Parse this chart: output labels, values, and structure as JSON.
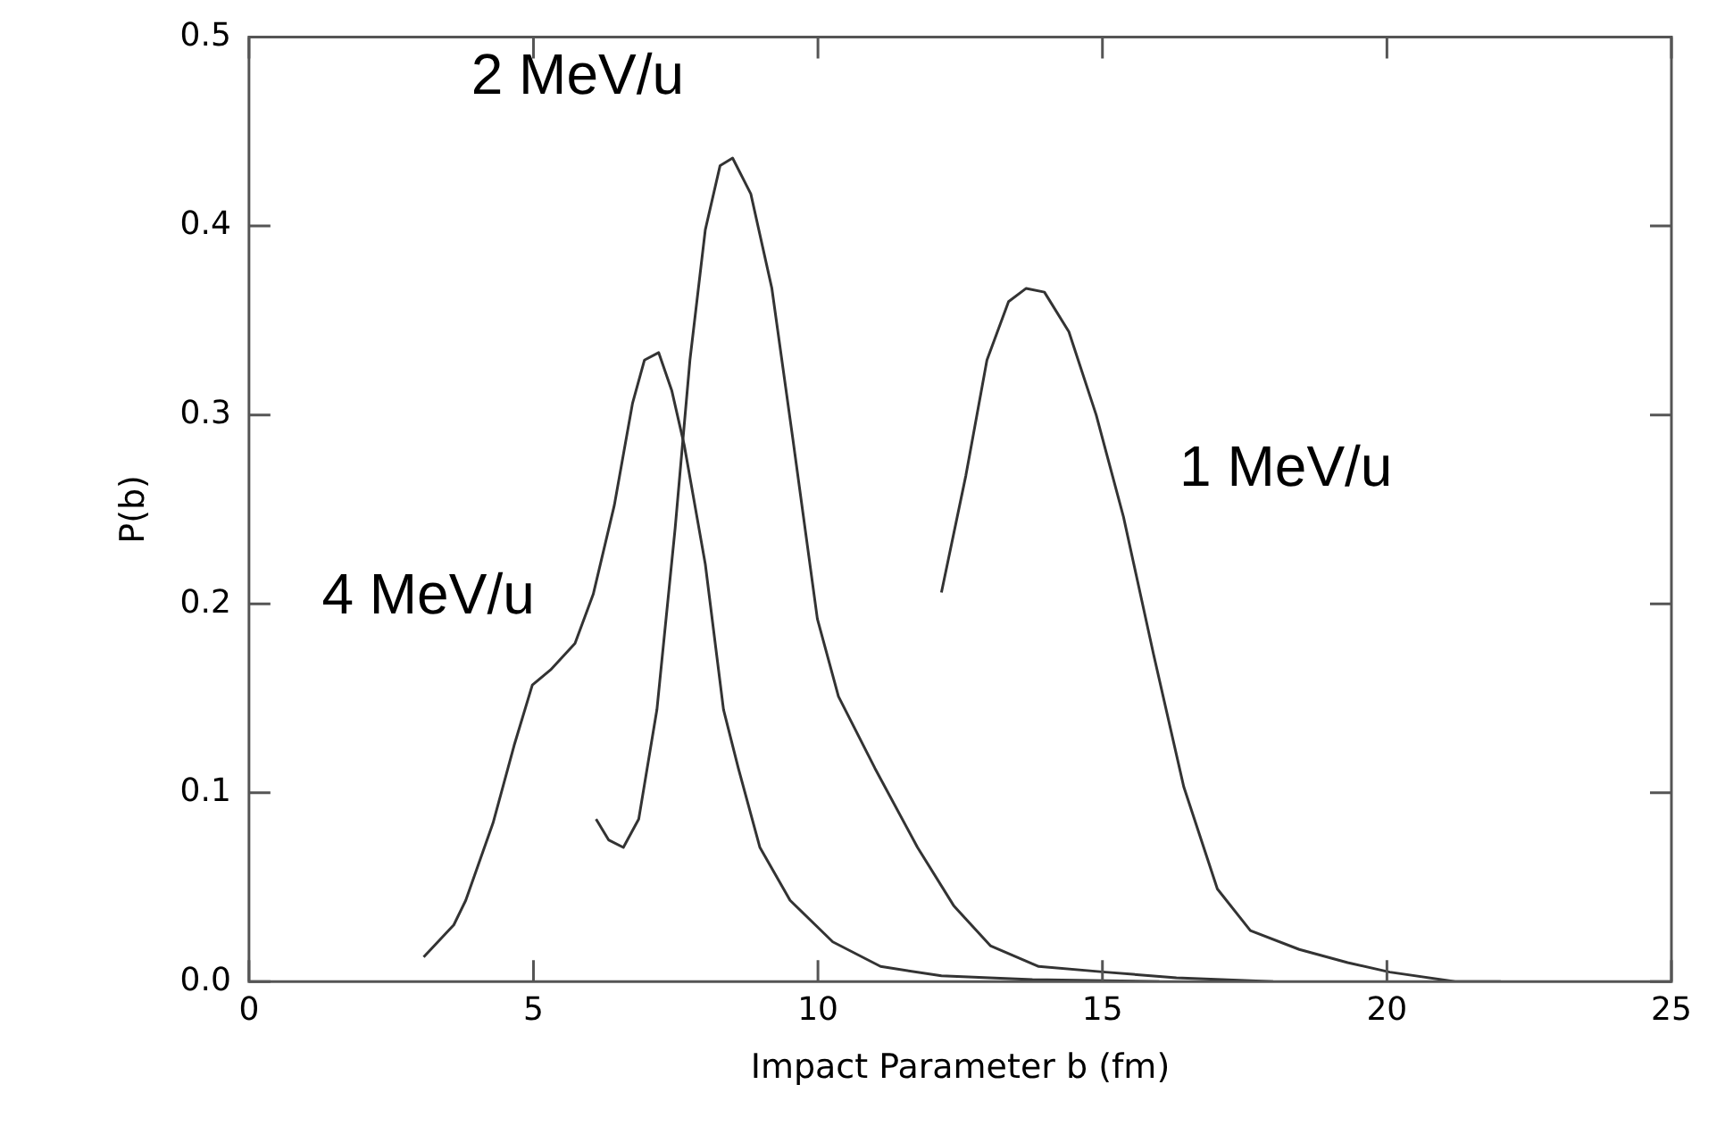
{
  "chart_data": {
    "type": "line",
    "xlabel": "Impact Parameter b (fm)",
    "ylabel": "P(b)",
    "xlim": [
      0,
      25
    ],
    "xticks": [
      0,
      5,
      10,
      15,
      20,
      25
    ],
    "ylim": [
      0,
      0.5
    ],
    "yticks": [
      {
        "value": 0,
        "label": "0.0"
      },
      0.1,
      0.2,
      0.3,
      0.4,
      0.5
    ],
    "grid": false,
    "legend": false,
    "marker": "none",
    "line_style": "solid",
    "series": [
      {
        "name": "4 MeV/u",
        "color": "#333333",
        "x": [
          3.07,
          3.6,
          3.81,
          4.29,
          4.66,
          4.98,
          5.3,
          5.73,
          6.05,
          6.42,
          6.74,
          6.95,
          7.2,
          7.43,
          7.65,
          8.02,
          8.34,
          8.6,
          8.98,
          9.51,
          10.26,
          11.1,
          12.17,
          13.77,
          16
        ],
        "values": [
          0.013,
          0.03,
          0.043,
          0.084,
          0.125,
          0.157,
          0.165,
          0.179,
          0.205,
          0.252,
          0.306,
          0.329,
          0.333,
          0.313,
          0.284,
          0.221,
          0.144,
          0.113,
          0.071,
          0.043,
          0.021,
          0.008,
          0.003,
          0.001,
          0
        ]
      },
      {
        "name": "2 MeV/u",
        "color": "#333333",
        "x": [
          6.1,
          6.32,
          6.58,
          6.85,
          7.17,
          7.49,
          7.75,
          8.02,
          8.28,
          8.5,
          8.82,
          9.19,
          9.56,
          9.99,
          10.36,
          11.0,
          11.75,
          12.39,
          13.03,
          13.88,
          15.05,
          16.3,
          18
        ],
        "values": [
          0.086,
          0.075,
          0.071,
          0.086,
          0.144,
          0.24,
          0.329,
          0.398,
          0.432,
          0.436,
          0.417,
          0.367,
          0.287,
          0.192,
          0.151,
          0.113,
          0.071,
          0.04,
          0.019,
          0.008,
          0.005,
          0.002,
          0
        ]
      },
      {
        "name": "1 MeV/u",
        "color": "#333333",
        "x": [
          12.17,
          12.6,
          12.97,
          13.35,
          13.66,
          13.98,
          14.41,
          14.89,
          15.37,
          15.9,
          16.43,
          17.02,
          17.6,
          18.46,
          19.31,
          20.05,
          21.2,
          22
        ],
        "values": [
          0.206,
          0.268,
          0.329,
          0.36,
          0.367,
          0.365,
          0.344,
          0.3,
          0.246,
          0.173,
          0.103,
          0.049,
          0.027,
          0.017,
          0.01,
          0.005,
          0,
          0
        ]
      }
    ]
  }
}
